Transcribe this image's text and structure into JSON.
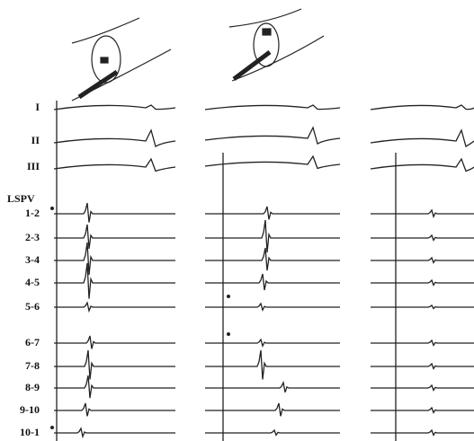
{
  "leads": [
    "I",
    "II",
    "III",
    "LSPV",
    "1-2",
    "2-3",
    "3-4",
    "4-5",
    "5-6",
    "6-7",
    "7-8",
    "8-9",
    "9-10",
    "10-1"
  ]
}
